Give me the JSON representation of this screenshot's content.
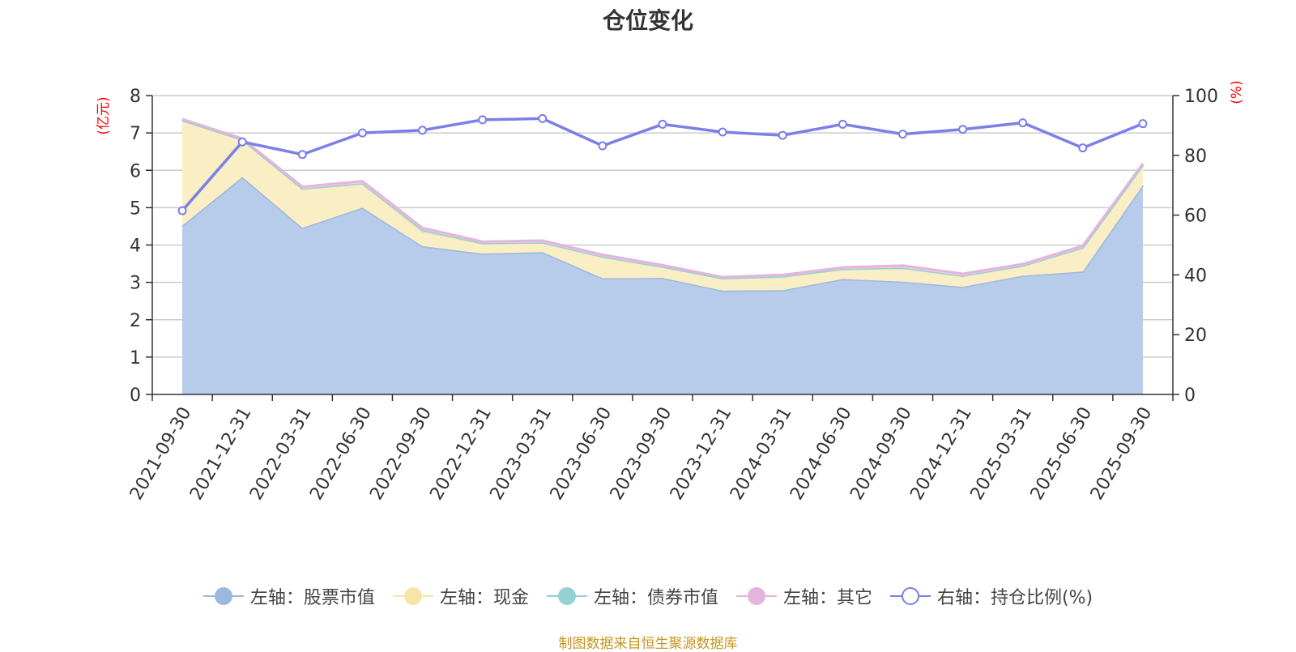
{
  "chart_data": {
    "type": "area",
    "title": "仓位变化",
    "categories": [
      "2021-09-30",
      "2021-12-31",
      "2022-03-31",
      "2022-06-30",
      "2022-09-30",
      "2022-12-31",
      "2023-03-31",
      "2023-06-30",
      "2023-09-30",
      "2023-12-31",
      "2024-03-31",
      "2024-06-30",
      "2024-09-30",
      "2024-12-31",
      "2025-03-31",
      "2025-06-30",
      "2025-09-30"
    ],
    "left_axis": {
      "label": "(亿元)",
      "min": 0,
      "max": 8,
      "ticks": [
        "0",
        "1",
        "2",
        "3",
        "4",
        "5",
        "6",
        "7",
        "8"
      ]
    },
    "right_axis": {
      "label": "(%)",
      "min": 0,
      "max": 100,
      "ticks": [
        "0",
        "20",
        "40",
        "60",
        "80",
        "100"
      ]
    },
    "series": [
      {
        "name": "左轴：股票市值",
        "axis": "left",
        "kind": "stack",
        "color": "#9db8e0",
        "fill": "#b7cbea",
        "values": [
          4.52,
          5.82,
          4.46,
          5.0,
          3.97,
          3.77,
          3.81,
          3.11,
          3.12,
          2.78,
          2.79,
          3.09,
          3.02,
          2.88,
          3.18,
          3.29,
          5.6
        ]
      },
      {
        "name": "左轴：现金",
        "axis": "left",
        "kind": "stack",
        "color": "#f5e6a8",
        "fill": "#faeec4",
        "values": [
          2.82,
          1.0,
          1.05,
          0.65,
          0.38,
          0.28,
          0.26,
          0.58,
          0.3,
          0.33,
          0.37,
          0.27,
          0.37,
          0.3,
          0.27,
          0.64,
          0.54
        ]
      },
      {
        "name": "左轴：债券市值",
        "axis": "left",
        "kind": "stack",
        "color": "#93d1d3",
        "fill": "#b5e0e1",
        "values": [
          0,
          0,
          0,
          0,
          0.06,
          0,
          0,
          0,
          0,
          0,
          0,
          0,
          0,
          0,
          0,
          0,
          0
        ]
      },
      {
        "name": "左轴：其它",
        "axis": "left",
        "kind": "stack",
        "color": "#e6b3dc",
        "fill": "#f1d0ea",
        "values": [
          0.03,
          0.03,
          0.05,
          0.06,
          0.05,
          0.04,
          0.05,
          0.05,
          0.04,
          0.03,
          0.04,
          0.04,
          0.06,
          0.05,
          0.04,
          0.05,
          0.04
        ]
      },
      {
        "name": "右轴：持仓比例(%)",
        "axis": "right",
        "kind": "line",
        "color": "#7b7fe8",
        "values": [
          61.5,
          84.5,
          80.3,
          87.5,
          88.4,
          91.9,
          92.3,
          83.2,
          90.4,
          87.8,
          86.7,
          90.4,
          87.1,
          88.7,
          90.9,
          82.5,
          90.6
        ]
      }
    ]
  },
  "source": {
    "text": "制图数据来自恒生聚源数据库",
    "color": "#c8941e"
  }
}
